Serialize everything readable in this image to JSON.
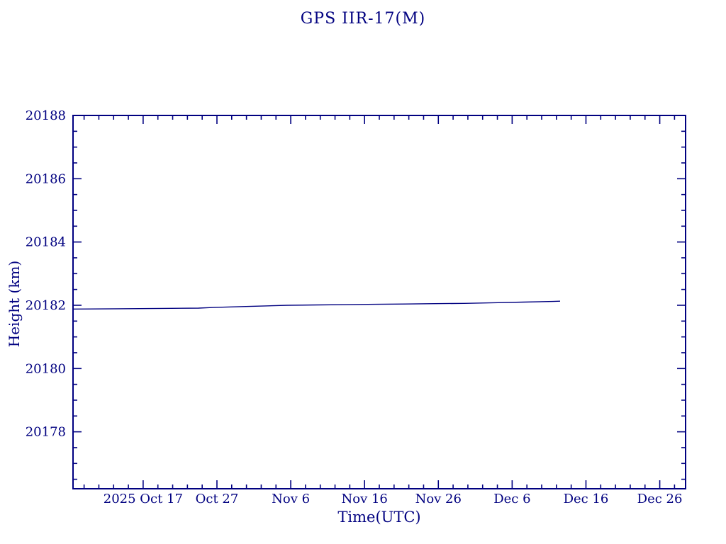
{
  "page": {
    "background": "#ffffff"
  },
  "chart_data": {
    "type": "line",
    "title": "GPS IIR-17(M)",
    "xlabel": "Time(UTC)",
    "ylabel": "Height (km)",
    "axis_color": "#000080",
    "line_color": "#000080",
    "grid": false,
    "legend": null,
    "xlim": [
      0,
      83
    ],
    "ylim": [
      20176.2,
      20188
    ],
    "x_axis_note": "x in days; day 9.5 = 2025 Oct 17",
    "x_major_ticks": [
      {
        "x": 9.5,
        "label": "2025 Oct 17"
      },
      {
        "x": 19.5,
        "label": "Oct 27"
      },
      {
        "x": 29.5,
        "label": "Nov 6"
      },
      {
        "x": 39.5,
        "label": "Nov 16"
      },
      {
        "x": 49.5,
        "label": "Nov 26"
      },
      {
        "x": 59.5,
        "label": "Dec 6"
      },
      {
        "x": 69.5,
        "label": "Dec 16"
      },
      {
        "x": 79.5,
        "label": "Dec 26"
      }
    ],
    "x_minor_step": 2,
    "y_major_ticks": [
      20178,
      20180,
      20182,
      20184,
      20186,
      20188
    ],
    "y_minor_step": 0.5,
    "series": [
      {
        "name": "height_km",
        "points": [
          [
            0,
            20181.88
          ],
          [
            6,
            20181.89
          ],
          [
            12,
            20181.9
          ],
          [
            17,
            20181.91
          ],
          [
            19,
            20181.93
          ],
          [
            23,
            20181.96
          ],
          [
            26,
            20181.98
          ],
          [
            29,
            20182.0
          ],
          [
            33,
            20182.01
          ],
          [
            37,
            20182.02
          ],
          [
            41,
            20182.03
          ],
          [
            45,
            20182.04
          ],
          [
            49,
            20182.05
          ],
          [
            53,
            20182.06
          ],
          [
            57,
            20182.08
          ],
          [
            61,
            20182.1
          ],
          [
            65,
            20182.12
          ],
          [
            66,
            20182.13
          ]
        ]
      }
    ]
  }
}
